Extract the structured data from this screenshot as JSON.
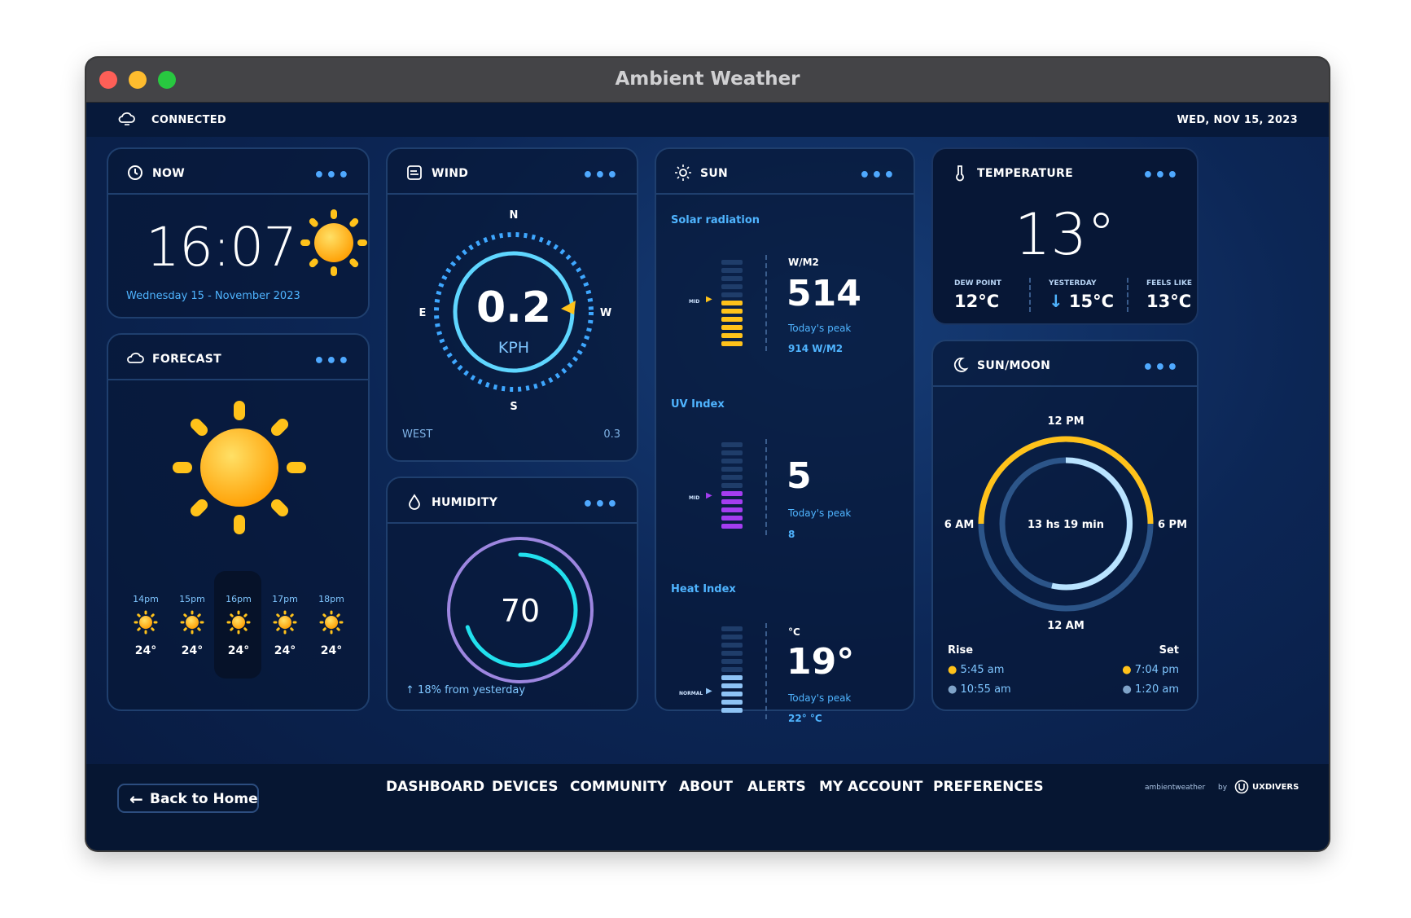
{
  "window": {
    "title": "Ambient Weather"
  },
  "status": {
    "connection": "CONNECTED",
    "date": "WED, NOV 15, 2023"
  },
  "now": {
    "label": "NOW",
    "time": "16:07",
    "date": "Wednesday 15 - November 2023"
  },
  "forecast": {
    "label": "FORECAST",
    "hours": [
      {
        "time": "14pm",
        "temp": "24°"
      },
      {
        "time": "15pm",
        "temp": "24°"
      },
      {
        "time": "16pm",
        "temp": "24°"
      },
      {
        "time": "17pm",
        "temp": "24°"
      },
      {
        "time": "18pm",
        "temp": "24°"
      }
    ]
  },
  "wind": {
    "label": "WIND",
    "speed": "0.2",
    "unit": "KPH",
    "n": "N",
    "s": "S",
    "e": "E",
    "w": "W",
    "direction": "WEST",
    "gust": "0.3"
  },
  "humidity": {
    "label": "HUMIDITY",
    "value": "70",
    "level_percent": 70,
    "change": "18% from yesterday"
  },
  "sun": {
    "label": "SUN",
    "solar": {
      "title": "Solar radiation",
      "unit": "W/M2",
      "value": "514",
      "peak_label": "Today's peak",
      "peak": "914 W/M2",
      "marker": "MID"
    },
    "uv": {
      "title": "UV Index",
      "value": "5",
      "peak_label": "Today's peak",
      "peak": "8",
      "marker": "MID"
    },
    "heat": {
      "title": "Heat Index",
      "unit": "°C",
      "value": "19°",
      "peak_label": "Today's peak",
      "peak": "22° °C",
      "marker": "NORMAL"
    }
  },
  "temperature": {
    "label": "TEMPERATURE",
    "value": "13°",
    "dew_label": "DEW POINT",
    "dew": "12°C",
    "yest_label": "YESTERDAY",
    "yest": "15°C",
    "feels_label": "FEELS LIKE",
    "feels": "13°C"
  },
  "sunmoon": {
    "label": "SUN/MOON",
    "noon": "12 PM",
    "midnight": "12 AM",
    "six_am": "6 AM",
    "six_pm": "6 PM",
    "daylight": "13 hs 19 min",
    "rise_label": "Rise",
    "set_label": "Set",
    "sunrise": "5:45 am",
    "moonrise": "10:55 am",
    "sunset": "7:04 pm",
    "moonset": "1:20 am"
  },
  "footer": {
    "back": "Back to Home",
    "nav": [
      "DASHBOARD",
      "DEVICES",
      "COMMUNITY",
      "ABOUT",
      "ALERTS",
      "MY ACCOUNT",
      "PREFERENCES"
    ],
    "brand_left": "ambientweather",
    "brand_by": "by",
    "brand_right": "UXDIVERS"
  },
  "colors": {
    "accent": "#4fb4ff",
    "sun": "#ffc21a",
    "uv": "#a43df0",
    "heat": "#8ec3f5"
  }
}
